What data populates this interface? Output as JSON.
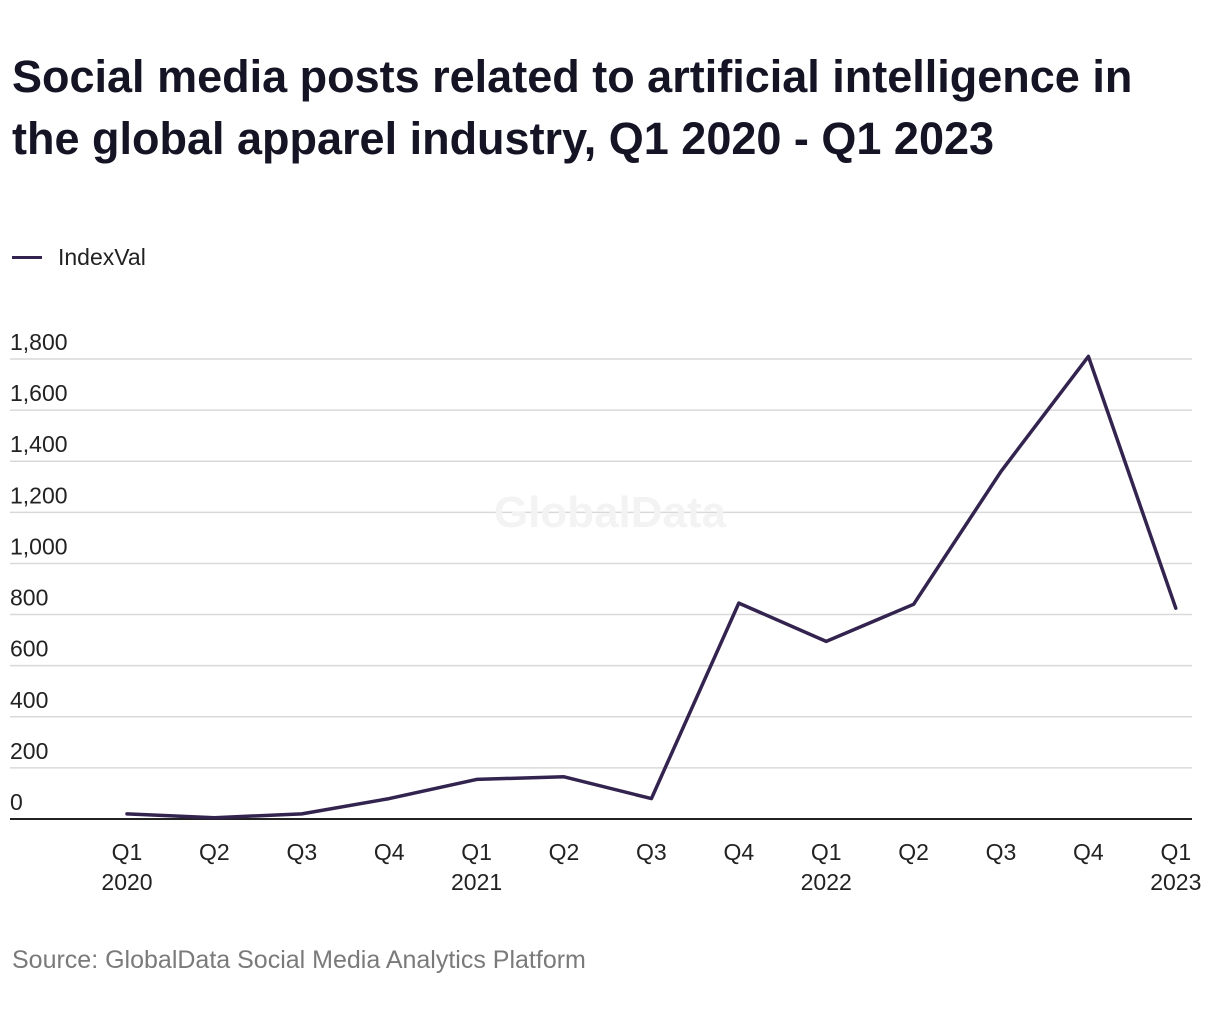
{
  "title": "Social media posts related to artificial intelligence in the global apparel industry, Q1 2020 - Q1 2023",
  "source": "Source: GlobalData Social Media Analytics Platform",
  "watermark": "GlobalData",
  "colors": {
    "line": "#33234f",
    "grid": "#d9d9d9",
    "axis": "#222222"
  },
  "chart_data": {
    "type": "line",
    "title": "Social media posts related to artificial intelligence in the global apparel industry, Q1 2020 - Q1 2023",
    "xlabel": "",
    "ylabel": "",
    "ylim": [
      0,
      1800
    ],
    "yticks": [
      0,
      200,
      400,
      600,
      800,
      1000,
      1200,
      1400,
      1600,
      1800
    ],
    "ytick_labels": [
      "0",
      "200",
      "400",
      "600",
      "800",
      "1,000",
      "1,200",
      "1,400",
      "1,600",
      "1,800"
    ],
    "grid": true,
    "legend_position": "top-left",
    "categories": [
      [
        "Q1",
        "2020"
      ],
      [
        "Q2",
        ""
      ],
      [
        "Q3",
        ""
      ],
      [
        "Q4",
        ""
      ],
      [
        "Q1",
        "2021"
      ],
      [
        "Q2",
        ""
      ],
      [
        "Q3",
        ""
      ],
      [
        "Q4",
        ""
      ],
      [
        "Q1",
        "2022"
      ],
      [
        "Q2",
        ""
      ],
      [
        "Q3",
        ""
      ],
      [
        "Q4",
        ""
      ],
      [
        "Q1",
        "2023"
      ]
    ],
    "series": [
      {
        "name": "IndexVal",
        "values": [
          20,
          5,
          20,
          80,
          155,
          165,
          80,
          845,
          695,
          840,
          1360,
          1810,
          825
        ]
      }
    ]
  }
}
